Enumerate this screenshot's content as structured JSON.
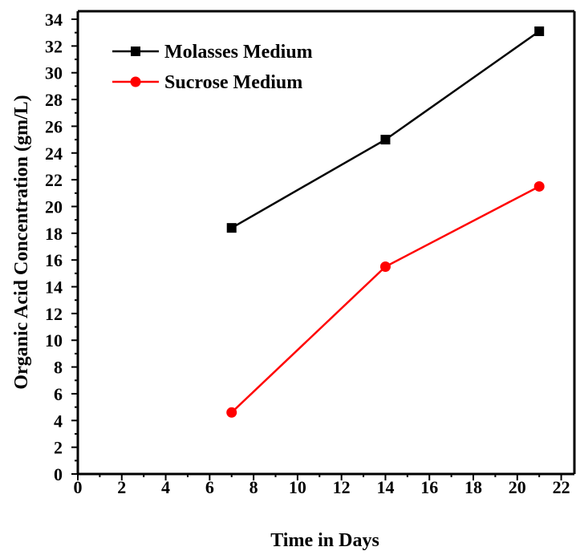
{
  "chart_data": {
    "type": "line",
    "title": "",
    "xlabel": "Time in Days",
    "ylabel": "Organic Acid Concentration (gm/L)",
    "xlim": [
      0,
      22.6
    ],
    "ylim": [
      0,
      34.6
    ],
    "x_ticks": [
      0,
      2,
      4,
      6,
      8,
      10,
      12,
      14,
      16,
      18,
      20,
      22
    ],
    "y_ticks": [
      0,
      2,
      4,
      6,
      8,
      10,
      12,
      14,
      16,
      18,
      20,
      22,
      24,
      26,
      28,
      30,
      32,
      34
    ],
    "grid": false,
    "legend_position": "top-left",
    "series": [
      {
        "name": "Molasses Medium",
        "color": "#000000",
        "marker": "square",
        "x": [
          7,
          14,
          21
        ],
        "y": [
          18.4,
          25,
          33.1
        ]
      },
      {
        "name": "Sucrose Medium",
        "color": "#ff0000",
        "marker": "circle",
        "x": [
          7,
          14,
          21
        ],
        "y": [
          4.6,
          15.5,
          21.5
        ]
      }
    ]
  }
}
